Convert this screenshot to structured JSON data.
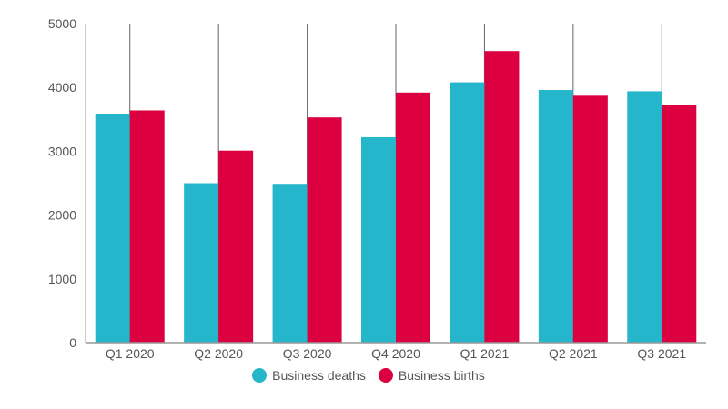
{
  "chart_data": {
    "type": "bar",
    "categories": [
      "Q1 2020",
      "Q2 2020",
      "Q3 2020",
      "Q4 2020",
      "Q1 2021",
      "Q2 2021",
      "Q3 2021"
    ],
    "series": [
      {
        "name": "Business deaths",
        "color": "#26b6cc",
        "values": [
          3590,
          2500,
          2490,
          3220,
          4080,
          3960,
          3940
        ]
      },
      {
        "name": "Business births",
        "color": "#dc0040",
        "values": [
          3640,
          3010,
          3530,
          3920,
          4570,
          3870,
          3720
        ]
      }
    ],
    "yticks": [
      "0",
      "1000",
      "2000",
      "3000",
      "4000",
      "5000"
    ],
    "ylim": [
      0,
      5000
    ],
    "grid": "vertical lines at category centers",
    "legend_position": "bottom-center",
    "axis_color": "#999999"
  }
}
